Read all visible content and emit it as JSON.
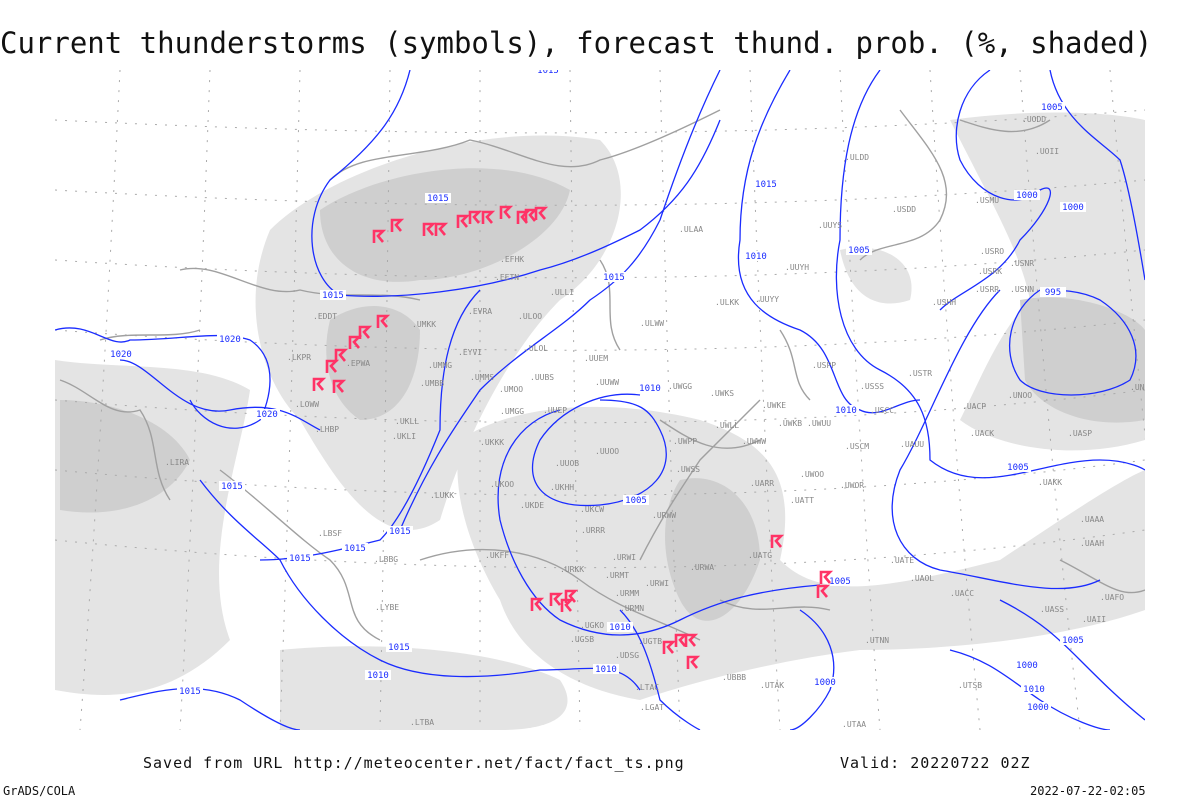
{
  "title": "Current thunderstorms (symbols), forecast thund. prob. (%, shaded)",
  "footer": {
    "saved_from": "Saved from URL http://meteocenter.net/fact/fact_ts.png",
    "valid": "Valid: 20220722 02Z",
    "software": "GrADS/COLA",
    "timestamp": "2022-07-22-02:05"
  },
  "colors": {
    "isobar": "#1a2cff",
    "coastline": "#a0a0a0",
    "shading_light": "#e4e4e4",
    "shading_mid": "#cfcfcf",
    "shading_dark": "#b4b4b4",
    "thunderstorm_symbol": "#ff3366",
    "station_label": "#888888"
  },
  "isobar_labels": [
    "1015",
    "1015",
    "1015",
    "1015",
    "1015",
    "1020",
    "1020",
    "1020",
    "1010",
    "1005",
    "1010",
    "1010",
    "1005",
    "1005",
    "1005",
    "1000",
    "1000",
    "995",
    "1015",
    "1015",
    "1015",
    "1015",
    "1015",
    "1015",
    "1010",
    "1010",
    "1010",
    "1005",
    "1000",
    "1005",
    "1000",
    "1010",
    "1000"
  ],
  "stations": [
    "ULAA",
    "ULOO",
    "EVRA",
    "ULOL",
    "UUEM",
    "ULWW",
    "UMMS",
    "UMOO",
    "UUBS",
    "UUWW",
    "UWGG",
    "UWKS",
    "UMGG",
    "UUEP",
    "UKKK",
    "UUOO",
    "UUOB",
    "UKHH",
    "UKOO",
    "UKDE",
    "UKCW",
    "URWW",
    "UWPP",
    "UWSS",
    "URRR",
    "UKFF",
    "URKK",
    "URMT",
    "URMM",
    "URMN",
    "UGKO",
    "UGSB",
    "URWI",
    "URWA",
    "UATG",
    "UARR",
    "UATT",
    "UWOO",
    "UWOR",
    "USCM",
    "UAUU",
    "USCC",
    "USSS",
    "USTR",
    "UACP",
    "UACK",
    "UASP",
    "UAKK",
    "UNOO",
    "UNBB",
    "USHH",
    "USRR",
    "USNN",
    "USRK",
    "USNR",
    "USRO",
    "USMU",
    "USDD",
    "UUYS",
    "UUYH",
    "UUYY",
    "ULKK",
    "ULDD",
    "UODD",
    "UOII",
    "USPP",
    "UWKE",
    "UWKB",
    "UWWW",
    "UWLL",
    "UWUU",
    "EFHK",
    "EETN",
    "ULLI",
    "UMKK",
    "EYVI",
    "UMMG",
    "UMBB",
    "UKLL",
    "UKLI",
    "EPWA",
    "LHBP",
    "LOWW",
    "LKPR",
    "EDDT",
    "LIRA",
    "LUKK",
    "LBSF",
    "LBBG",
    "LYBE",
    "UAAA",
    "UAII",
    "UTAA",
    "UTAK",
    "UTSB",
    "UTNN",
    "UATE",
    "UAOL",
    "UACC",
    "UASS",
    "UAAH",
    "UGTB",
    "UBBB",
    "UDSG",
    "LTBA",
    "LTAC",
    "LGAT",
    "URWI",
    "UAFO"
  ]
}
